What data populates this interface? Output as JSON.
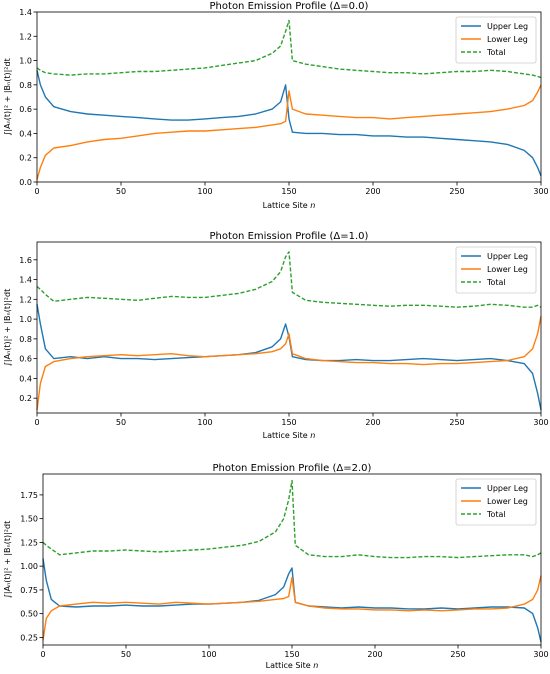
{
  "figure": {},
  "chart_data": [
    {
      "type": "line",
      "title": "Photon Emission Profile (Δ=0.0)",
      "xlabel": "Lattice Site n",
      "ylabel": "∫|Aₙ(t)|² + |Bₙ(t)|²dt",
      "xlim": [
        0,
        300
      ],
      "ylim": [
        0.0,
        1.4
      ],
      "xticks": [
        0,
        50,
        100,
        150,
        200,
        250,
        300
      ],
      "yticks": [
        0.0,
        0.2,
        0.4,
        0.6,
        0.8,
        1.0,
        1.2,
        1.4
      ],
      "legend_position": "top-right",
      "x": [
        0,
        2,
        5,
        10,
        20,
        30,
        40,
        50,
        60,
        70,
        80,
        90,
        100,
        110,
        120,
        130,
        140,
        145,
        148,
        150,
        152,
        160,
        170,
        180,
        190,
        200,
        210,
        220,
        230,
        240,
        250,
        260,
        270,
        280,
        290,
        295,
        298,
        300
      ],
      "series": [
        {
          "name": "Upper Leg",
          "color": "#1f77b4",
          "style": "solid",
          "values": [
            0.92,
            0.8,
            0.7,
            0.62,
            0.58,
            0.56,
            0.55,
            0.54,
            0.53,
            0.52,
            0.51,
            0.51,
            0.52,
            0.53,
            0.54,
            0.56,
            0.6,
            0.66,
            0.8,
            0.52,
            0.41,
            0.4,
            0.4,
            0.39,
            0.39,
            0.38,
            0.38,
            0.37,
            0.37,
            0.36,
            0.35,
            0.34,
            0.33,
            0.31,
            0.26,
            0.2,
            0.12,
            0.05
          ]
        },
        {
          "name": "Lower Leg",
          "color": "#ff7f0e",
          "style": "solid",
          "values": [
            0.02,
            0.12,
            0.22,
            0.28,
            0.3,
            0.33,
            0.35,
            0.36,
            0.38,
            0.4,
            0.41,
            0.42,
            0.42,
            0.43,
            0.44,
            0.45,
            0.47,
            0.48,
            0.5,
            0.75,
            0.6,
            0.56,
            0.55,
            0.54,
            0.53,
            0.53,
            0.52,
            0.53,
            0.54,
            0.55,
            0.56,
            0.57,
            0.58,
            0.6,
            0.63,
            0.67,
            0.74,
            0.8
          ]
        },
        {
          "name": "Total",
          "color": "#2ca02c",
          "style": "dashed",
          "values": [
            0.94,
            0.92,
            0.9,
            0.89,
            0.88,
            0.89,
            0.89,
            0.9,
            0.91,
            0.91,
            0.92,
            0.93,
            0.94,
            0.96,
            0.98,
            1.0,
            1.06,
            1.12,
            1.24,
            1.33,
            1.0,
            0.97,
            0.95,
            0.93,
            0.92,
            0.91,
            0.9,
            0.9,
            0.89,
            0.9,
            0.91,
            0.91,
            0.92,
            0.91,
            0.89,
            0.88,
            0.87,
            0.86
          ]
        }
      ]
    },
    {
      "type": "line",
      "title": "Photon Emission Profile (Δ=1.0)",
      "xlabel": "Lattice Site n",
      "ylabel": "∫|Aₙ(t)|² + |Bₙ(t)|²dt",
      "xlim": [
        0,
        300
      ],
      "ylim": [
        0.05,
        1.78
      ],
      "xticks": [
        0,
        50,
        100,
        150,
        200,
        250,
        300
      ],
      "yticks": [
        0.2,
        0.4,
        0.6,
        0.8,
        1.0,
        1.2,
        1.4,
        1.6
      ],
      "legend_position": "top-right",
      "x": [
        0,
        2,
        5,
        10,
        20,
        30,
        40,
        50,
        60,
        70,
        80,
        90,
        100,
        110,
        120,
        130,
        140,
        145,
        148,
        150,
        152,
        160,
        170,
        180,
        190,
        200,
        210,
        220,
        230,
        240,
        250,
        260,
        270,
        280,
        290,
        295,
        298,
        300
      ],
      "series": [
        {
          "name": "Upper Leg",
          "color": "#1f77b4",
          "style": "solid",
          "values": [
            1.15,
            0.95,
            0.7,
            0.6,
            0.62,
            0.6,
            0.62,
            0.6,
            0.6,
            0.59,
            0.6,
            0.61,
            0.62,
            0.63,
            0.64,
            0.66,
            0.72,
            0.8,
            0.95,
            0.82,
            0.62,
            0.59,
            0.58,
            0.58,
            0.59,
            0.58,
            0.58,
            0.59,
            0.6,
            0.59,
            0.58,
            0.59,
            0.6,
            0.58,
            0.55,
            0.45,
            0.25,
            0.08
          ]
        },
        {
          "name": "Lower Leg",
          "color": "#ff7f0e",
          "style": "solid",
          "values": [
            0.08,
            0.35,
            0.52,
            0.57,
            0.6,
            0.62,
            0.63,
            0.64,
            0.63,
            0.64,
            0.65,
            0.63,
            0.62,
            0.63,
            0.64,
            0.65,
            0.67,
            0.7,
            0.75,
            0.85,
            0.65,
            0.6,
            0.58,
            0.57,
            0.56,
            0.56,
            0.55,
            0.55,
            0.54,
            0.55,
            0.55,
            0.56,
            0.57,
            0.58,
            0.62,
            0.7,
            0.85,
            1.03
          ]
        },
        {
          "name": "Total",
          "color": "#2ca02c",
          "style": "dashed",
          "values": [
            1.33,
            1.3,
            1.25,
            1.18,
            1.2,
            1.22,
            1.21,
            1.2,
            1.19,
            1.21,
            1.23,
            1.22,
            1.22,
            1.24,
            1.26,
            1.3,
            1.38,
            1.48,
            1.63,
            1.68,
            1.27,
            1.19,
            1.17,
            1.16,
            1.15,
            1.14,
            1.13,
            1.14,
            1.14,
            1.13,
            1.12,
            1.13,
            1.15,
            1.14,
            1.12,
            1.12,
            1.14,
            1.12
          ]
        }
      ]
    },
    {
      "type": "line",
      "title": "Photon Emission Profile (Δ=2.0)",
      "xlabel": "Lattice Site n",
      "ylabel": "∫|Aₙ(t)|² + |Bₙ(t)|²dt",
      "xlim": [
        0,
        300
      ],
      "ylim": [
        0.17,
        1.97
      ],
      "xticks": [
        0,
        50,
        100,
        150,
        200,
        250,
        300
      ],
      "yticks": [
        0.25,
        0.5,
        0.75,
        1.0,
        1.25,
        1.5,
        1.75
      ],
      "legend_position": "top-right",
      "x": [
        0,
        2,
        5,
        10,
        20,
        30,
        40,
        50,
        60,
        70,
        80,
        90,
        100,
        110,
        120,
        130,
        140,
        145,
        148,
        150,
        152,
        160,
        170,
        180,
        190,
        200,
        210,
        220,
        230,
        240,
        250,
        260,
        270,
        280,
        290,
        295,
        298,
        300
      ],
      "series": [
        {
          "name": "Upper Leg",
          "color": "#1f77b4",
          "style": "solid",
          "values": [
            1.08,
            0.85,
            0.65,
            0.58,
            0.57,
            0.58,
            0.58,
            0.59,
            0.58,
            0.58,
            0.59,
            0.6,
            0.6,
            0.61,
            0.62,
            0.64,
            0.7,
            0.78,
            0.92,
            0.98,
            0.62,
            0.58,
            0.57,
            0.56,
            0.57,
            0.56,
            0.56,
            0.55,
            0.55,
            0.56,
            0.55,
            0.56,
            0.57,
            0.57,
            0.56,
            0.5,
            0.35,
            0.2
          ]
        },
        {
          "name": "Lower Leg",
          "color": "#ff7f0e",
          "style": "solid",
          "values": [
            0.22,
            0.45,
            0.53,
            0.58,
            0.6,
            0.62,
            0.61,
            0.62,
            0.61,
            0.6,
            0.62,
            0.61,
            0.6,
            0.61,
            0.62,
            0.63,
            0.65,
            0.66,
            0.68,
            0.88,
            0.62,
            0.58,
            0.56,
            0.55,
            0.55,
            0.54,
            0.54,
            0.53,
            0.54,
            0.53,
            0.54,
            0.55,
            0.55,
            0.56,
            0.6,
            0.65,
            0.75,
            0.9
          ]
        },
        {
          "name": "Total",
          "color": "#2ca02c",
          "style": "dashed",
          "values": [
            1.25,
            1.22,
            1.18,
            1.12,
            1.14,
            1.16,
            1.16,
            1.17,
            1.16,
            1.15,
            1.16,
            1.17,
            1.18,
            1.2,
            1.22,
            1.26,
            1.36,
            1.5,
            1.7,
            1.9,
            1.22,
            1.12,
            1.1,
            1.1,
            1.12,
            1.1,
            1.09,
            1.09,
            1.1,
            1.1,
            1.09,
            1.1,
            1.11,
            1.12,
            1.12,
            1.1,
            1.12,
            1.14
          ]
        }
      ]
    }
  ]
}
